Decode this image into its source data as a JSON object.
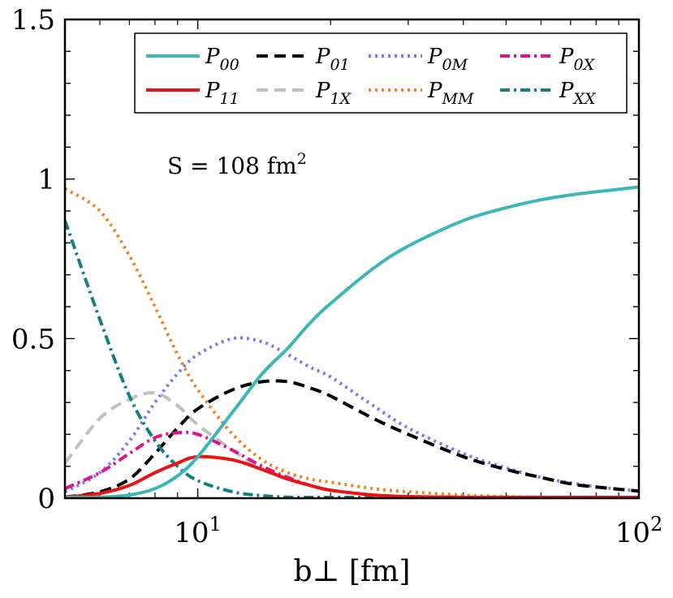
{
  "chart_data": {
    "type": "line",
    "xscale": "log",
    "xlim": [
      5,
      100
    ],
    "ylim": [
      0,
      1.5
    ],
    "xlabel": "b⊥ [fm]",
    "ylabel": "",
    "title": "",
    "x_ticks": [
      {
        "value": 10,
        "base": "10",
        "exp": "1"
      },
      {
        "value": 100,
        "base": "10",
        "exp": "2"
      }
    ],
    "y_ticks": [
      {
        "value": 0,
        "label": "0"
      },
      {
        "value": 0.5,
        "label": "0.5"
      },
      {
        "value": 1,
        "label": "1"
      },
      {
        "value": 1.5,
        "label": "1.5"
      }
    ],
    "grid": false,
    "legend_position": "top-right",
    "annotation": {
      "label": "S = 108 fm",
      "superscript": "2"
    },
    "x": [
      5,
      6,
      7,
      8,
      9,
      10,
      12,
      14,
      16,
      18,
      20,
      25,
      30,
      40,
      50,
      60,
      70,
      80,
      100
    ],
    "series": [
      {
        "key": "P00",
        "main": "P",
        "sub": "00",
        "color": "#3cb6b6",
        "dash": "",
        "width": 4,
        "values": [
          0.0,
          0.003,
          0.01,
          0.03,
          0.07,
          0.13,
          0.27,
          0.39,
          0.47,
          0.55,
          0.61,
          0.72,
          0.79,
          0.87,
          0.91,
          0.935,
          0.95,
          0.96,
          0.975
        ]
      },
      {
        "key": "P11",
        "main": "P",
        "sub": "11",
        "color": "#ee1111",
        "dash": "",
        "width": 4,
        "values": [
          0.003,
          0.015,
          0.04,
          0.08,
          0.11,
          0.13,
          0.12,
          0.09,
          0.06,
          0.04,
          0.025,
          0.01,
          0.005,
          0.002,
          0.001,
          0.0,
          0.0,
          0.0,
          0.0
        ]
      },
      {
        "key": "P01",
        "main": "P",
        "sub": "01",
        "color": "#000000",
        "dash": "14,8",
        "width": 4,
        "values": [
          0.003,
          0.02,
          0.06,
          0.14,
          0.22,
          0.28,
          0.34,
          0.365,
          0.365,
          0.345,
          0.32,
          0.25,
          0.2,
          0.13,
          0.09,
          0.065,
          0.045,
          0.035,
          0.022
        ]
      },
      {
        "key": "P1X",
        "main": "P",
        "sub": "1X",
        "color": "#c0c0c0",
        "dash": "14,8",
        "width": 4,
        "values": [
          0.11,
          0.25,
          0.31,
          0.33,
          0.29,
          0.23,
          0.15,
          0.09,
          0.06,
          0.04,
          0.025,
          0.01,
          0.005,
          0.002,
          0.001,
          0.0,
          0.0,
          0.0,
          0.0
        ]
      },
      {
        "key": "P0M",
        "main": "P",
        "sub": "0M",
        "color": "#7b7bee",
        "dash": "3,5",
        "width": 4,
        "values": [
          0.02,
          0.08,
          0.18,
          0.3,
          0.39,
          0.45,
          0.5,
          0.49,
          0.45,
          0.41,
          0.38,
          0.29,
          0.22,
          0.14,
          0.095,
          0.065,
          0.048,
          0.036,
          0.022
        ]
      },
      {
        "key": "PMM",
        "main": "P",
        "sub": "MM",
        "color": "#f58220",
        "dash": "3,5",
        "width": 4,
        "values": [
          0.97,
          0.9,
          0.76,
          0.6,
          0.45,
          0.34,
          0.2,
          0.12,
          0.08,
          0.06,
          0.05,
          0.03,
          0.02,
          0.01,
          0.005,
          0.003,
          0.002,
          0.001,
          0.0
        ]
      },
      {
        "key": "P0X",
        "main": "P",
        "sub": "0X",
        "color": "#e0138c",
        "dash": "12,5,3,5",
        "width": 4,
        "values": [
          0.03,
          0.08,
          0.14,
          0.19,
          0.205,
          0.2,
          0.15,
          0.1,
          0.065,
          0.04,
          0.025,
          0.01,
          0.005,
          0.002,
          0.001,
          0.0,
          0.0,
          0.0,
          0.0
        ]
      },
      {
        "key": "PXX",
        "main": "P",
        "sub": "XX",
        "color": "#138080",
        "dash": "12,5,3,5",
        "width": 4,
        "values": [
          0.87,
          0.56,
          0.32,
          0.18,
          0.1,
          0.055,
          0.02,
          0.008,
          0.003,
          0.001,
          0.0,
          0.0,
          0.0,
          0.0,
          0.0,
          0.0,
          0.0,
          0.0,
          0.0
        ]
      }
    ]
  }
}
